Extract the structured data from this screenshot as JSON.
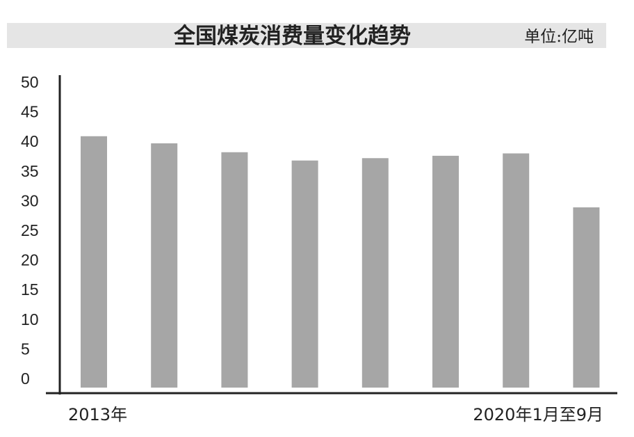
{
  "header": {
    "title": "全国煤炭消费量变化趋势",
    "unit": "单位:亿吨"
  },
  "colors": {
    "bar": "#a6a6a6",
    "axis": "#222222",
    "title_band": "#e5e5e5"
  },
  "chart_data": {
    "type": "bar",
    "title": "全国煤炭消费量变化趋势",
    "unit": "单位:亿吨",
    "xlabel": "",
    "ylabel": "",
    "categories": [
      "2013年",
      "",
      "",
      "",
      "",
      "",
      "",
      "2020年1月至9月"
    ],
    "values": [
      42.4,
      41.2,
      39.7,
      38.3,
      38.7,
      39.1,
      39.5,
      30.4
    ],
    "ylim": [
      0,
      50
    ],
    "yticks": [
      0,
      5,
      10,
      15,
      20,
      25,
      30,
      35,
      40,
      45,
      50
    ],
    "grid": false,
    "legend": "none"
  }
}
